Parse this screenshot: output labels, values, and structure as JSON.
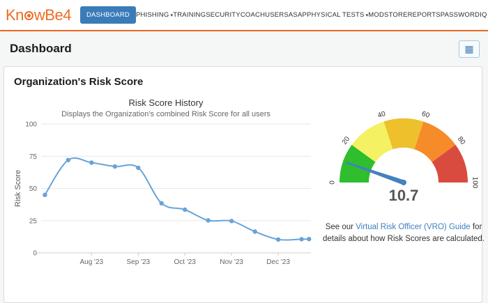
{
  "nav": {
    "logo_part1": "Kn",
    "logo_part2": "wBe4",
    "caret_icon": "▾",
    "items": [
      {
        "label": "DASHBOARD"
      },
      {
        "label": "PHISHING"
      },
      {
        "label": "TRAINING"
      },
      {
        "label": "SECURITYCOACH"
      },
      {
        "label": "USERS"
      },
      {
        "label": "ASAP"
      },
      {
        "label": "PHYSICAL TESTS"
      },
      {
        "label": "MODSTORE"
      },
      {
        "label": "REPORTS"
      },
      {
        "label": "PASSWORDIQ"
      }
    ]
  },
  "header": {
    "title": "Dashboard",
    "grid_button_icon": "▦"
  },
  "card": {
    "title": "Organization's Risk Score"
  },
  "chart_data": [
    {
      "type": "line",
      "title": "Risk Score History",
      "subtitle": "Displays the Organization's combined Risk Score for all users",
      "xlabel": "",
      "ylabel": "Risk Score",
      "ylim": [
        0,
        100
      ],
      "yticks": [
        0,
        25,
        50,
        75,
        100
      ],
      "xlim": [
        -0.08,
        5.7
      ],
      "grid": true,
      "legend": "none",
      "xticks": [
        {
          "pos": 1,
          "label": "Aug '23"
        },
        {
          "pos": 2,
          "label": "Sep '23"
        },
        {
          "pos": 3,
          "label": "Oct '23"
        },
        {
          "pos": 4,
          "label": "Nov '23"
        },
        {
          "pos": 5,
          "label": "Dec '23"
        }
      ],
      "series": [
        {
          "name": "Risk Score",
          "color": "#68a3d8",
          "x": [
            0,
            0.5,
            1,
            1.5,
            2,
            2.5,
            3,
            3.5,
            4,
            4.5,
            5,
            5.5,
            5.66
          ],
          "values": [
            45,
            72,
            70,
            67,
            66,
            38.5,
            33.5,
            25.2,
            24.7,
            16.5,
            10.4,
            10.6,
            10.7
          ]
        }
      ]
    },
    {
      "type": "gauge",
      "value": 10.7,
      "value_label": "10.7",
      "min": 0,
      "max": 100,
      "tick_labels": [
        "0",
        "20",
        "40",
        "60",
        "80",
        "100"
      ],
      "segments": [
        {
          "from": 0,
          "to": 20,
          "color": "#2ebe2e"
        },
        {
          "from": 20,
          "to": 40,
          "color": "#f4f162"
        },
        {
          "from": 40,
          "to": 60,
          "color": "#edc02c"
        },
        {
          "from": 60,
          "to": 80,
          "color": "#f68b29"
        },
        {
          "from": 80,
          "to": 100,
          "color": "#da4b3f"
        }
      ],
      "needle_color": "#4381bf",
      "value_color": "#555555"
    }
  ],
  "vro_note": {
    "prefix": "See our ",
    "link_text": "Virtual Risk Officer (VRO) Guide",
    "suffix": " for details about how Risk Scores are calculated."
  },
  "colors": {
    "brand_orange": "#ee6c23",
    "active_nav_blue": "#3a7cb8",
    "link_blue": "#3c7fc0"
  }
}
